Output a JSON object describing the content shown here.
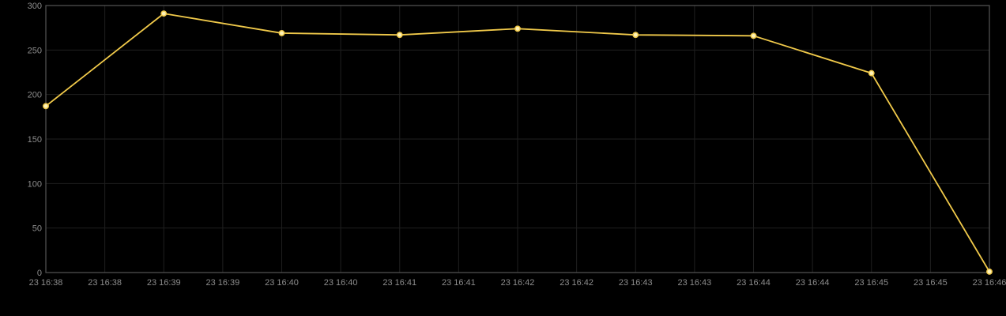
{
  "chart_data": {
    "type": "line",
    "title": "",
    "xlabel": "",
    "ylabel": "",
    "ylim": [
      0,
      300
    ],
    "yticks": [
      0,
      50,
      100,
      150,
      200,
      250,
      300
    ],
    "xlim_minutes": [
      0,
      8
    ],
    "xtick_labels": [
      "23 16:38",
      "23 16:38",
      "23 16:39",
      "23 16:39",
      "23 16:40",
      "23 16:40",
      "23 16:41",
      "23 16:41",
      "23 16:42",
      "23 16:42",
      "23 16:43",
      "23 16:43",
      "23 16:44",
      "23 16:44",
      "23 16:45",
      "23 16:45",
      "23 16:46"
    ],
    "grid": true,
    "legend": "none",
    "series": [
      {
        "color": "#f0c94a",
        "x": [
          "23 16:38",
          "23 16:39",
          "23 16:40",
          "23 16:41",
          "23 16:42",
          "23 16:43",
          "23 16:44",
          "23 16:45",
          "23 16:46"
        ],
        "values": [
          187,
          291,
          269,
          267,
          274,
          267,
          266,
          224,
          1
        ]
      }
    ],
    "colors": {
      "background": "#000000",
      "grid": "#1f1f1f",
      "axis": "#555555",
      "tick_text": "#8c8c8c",
      "marker_fill": "#fff3b8"
    }
  }
}
